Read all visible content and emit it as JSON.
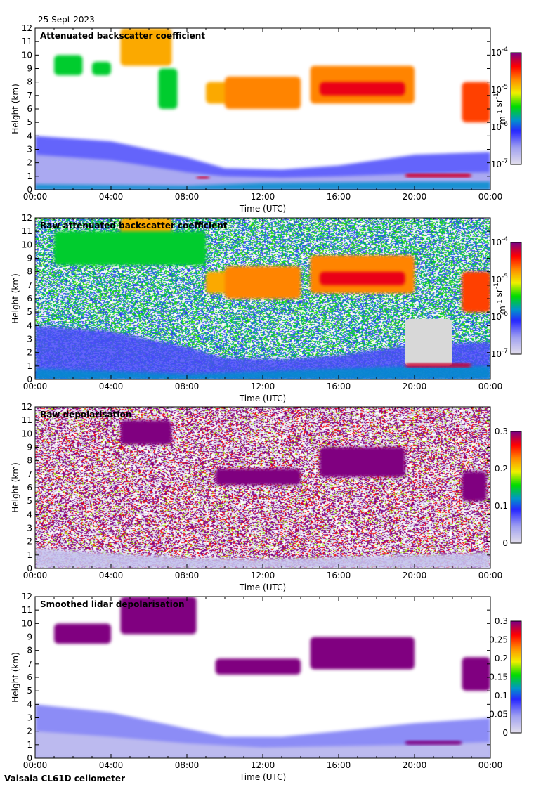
{
  "header": {
    "date": "25 Sept 2023"
  },
  "footer": {
    "instrument": "Vaisala CL61D ceilometer"
  },
  "chart_data": [
    {
      "type": "heatmap",
      "title": "Attenuated backscatter coefficient",
      "xlabel": "Time (UTC)",
      "ylabel": "Height (km)",
      "xlim_hours": [
        0,
        24
      ],
      "ylim": [
        0,
        12
      ],
      "xticks": [
        "00:00",
        "04:00",
        "08:00",
        "12:00",
        "16:00",
        "20:00",
        "00:00"
      ],
      "yticks": [
        "0",
        "1",
        "2",
        "3",
        "4",
        "5",
        "6",
        "7",
        "8",
        "9",
        "10",
        "11",
        "12"
      ],
      "background": "clear",
      "colorbar": {
        "scale": "log",
        "range": [
          1e-07,
          0.0001
        ],
        "label": "m-1 sr-1",
        "ticks": [
          {
            "base": "10",
            "exp": "-7"
          },
          {
            "base": "10",
            "exp": "-6"
          },
          {
            "base": "10",
            "exp": "-5"
          },
          {
            "base": "10",
            "exp": "-4"
          }
        ]
      },
      "features": [
        {
          "name": "boundary-layer-aerosol",
          "t": [
            0,
            24
          ],
          "top": [
            [
              0,
              4
            ],
            [
              4,
              3.6
            ],
            [
              8,
              2.4
            ],
            [
              10,
              1.6
            ],
            [
              13,
              1.5
            ],
            [
              16,
              1.8
            ],
            [
              20,
              2.6
            ],
            [
              24,
              2.8
            ]
          ],
          "value": 6e-07
        },
        {
          "name": "residual-layer",
          "t": [
            0,
            24
          ],
          "top": [
            [
              0,
              2.6
            ],
            [
              4,
              2.2
            ],
            [
              8,
              1.3
            ],
            [
              10,
              1.0
            ],
            [
              13,
              0.9
            ],
            [
              16,
              1.0
            ],
            [
              20,
              1.2
            ],
            [
              24,
              1.3
            ]
          ],
          "value": 2e-07
        },
        {
          "name": "surface-layer",
          "t": [
            0,
            24
          ],
          "top": [
            [
              0,
              0.4
            ],
            [
              8,
              0.3
            ],
            [
              12,
              0.5
            ],
            [
              20,
              0.6
            ],
            [
              24,
              0.6
            ]
          ],
          "value": 1.5e-06
        },
        {
          "name": "cirrus-early",
          "t": [
            1,
            2.5
          ],
          "h": [
            8.5,
            10
          ],
          "value": 3e-06
        },
        {
          "name": "cirrus-early-2",
          "t": [
            3,
            4
          ],
          "h": [
            8.5,
            9.5
          ],
          "value": 3e-06
        },
        {
          "name": "cirrus-high",
          "t": [
            4.5,
            7.2
          ],
          "h": [
            9.2,
            12
          ],
          "value": 1.5e-05
        },
        {
          "name": "fallstreak",
          "t": [
            6.5,
            7.5
          ],
          "h": [
            6,
            9
          ],
          "value": 3e-06
        },
        {
          "name": "cloud-mid-1",
          "t": [
            9,
            10.5
          ],
          "h": [
            6.4,
            8
          ],
          "value": 1.5e-05
        },
        {
          "name": "cloud-mid-2",
          "t": [
            10,
            14
          ],
          "h": [
            6,
            8.4
          ],
          "value": 2e-05
        },
        {
          "name": "cloud-mid-3",
          "t": [
            14.5,
            20
          ],
          "h": [
            6.4,
            9.2
          ],
          "value": 2e-05
        },
        {
          "name": "cloud-mid-core",
          "t": [
            15,
            19.5
          ],
          "h": [
            7,
            8
          ],
          "value": 5e-05
        },
        {
          "name": "cloud-late",
          "t": [
            22.5,
            24
          ],
          "h": [
            5,
            8
          ],
          "value": 3e-05
        },
        {
          "name": "low-cloud-evening",
          "t": [
            19.5,
            23
          ],
          "h": [
            0.9,
            1.2
          ],
          "value": 6e-05
        },
        {
          "name": "low-cloud-morning",
          "t": [
            8.5,
            9.2
          ],
          "h": [
            0.8,
            1.0
          ],
          "value": 6e-05
        }
      ]
    },
    {
      "type": "heatmap",
      "title": "Raw attenuated backscatter coefficient",
      "xlabel": "Time (UTC)",
      "ylabel": "Height (km)",
      "xlim_hours": [
        0,
        24
      ],
      "ylim": [
        0,
        12
      ],
      "xticks": [
        "00:00",
        "04:00",
        "08:00",
        "12:00",
        "16:00",
        "20:00",
        "00:00"
      ],
      "yticks": [
        "0",
        "1",
        "2",
        "3",
        "4",
        "5",
        "6",
        "7",
        "8",
        "9",
        "10",
        "11",
        "12"
      ],
      "background": "noise",
      "colorbar": {
        "scale": "log",
        "range": [
          1e-07,
          0.0001
        ],
        "label": "m-1 sr-1",
        "ticks": [
          {
            "base": "10",
            "exp": "-7"
          },
          {
            "base": "10",
            "exp": "-6"
          },
          {
            "base": "10",
            "exp": "-5"
          },
          {
            "base": "10",
            "exp": "-4"
          }
        ]
      },
      "features": [
        {
          "name": "boundary-layer-aerosol",
          "t": [
            0,
            24
          ],
          "top": [
            [
              0,
              4
            ],
            [
              4,
              3.6
            ],
            [
              8,
              2.4
            ],
            [
              10,
              1.6
            ],
            [
              13,
              1.5
            ],
            [
              16,
              1.8
            ],
            [
              20,
              2.6
            ],
            [
              24,
              2.8
            ]
          ],
          "value": 6e-07
        },
        {
          "name": "surface-layer",
          "t": [
            0,
            24
          ],
          "top": [
            [
              0,
              0.8
            ],
            [
              8,
              0.4
            ],
            [
              12,
              0.6
            ],
            [
              20,
              1.0
            ],
            [
              24,
              1.0
            ]
          ],
          "value": 1.5e-06
        },
        {
          "name": "cirrus-high",
          "t": [
            4.5,
            7.2
          ],
          "h": [
            9.2,
            12
          ],
          "value": 1.5e-05
        },
        {
          "name": "cirrus-wide",
          "t": [
            1,
            9
          ],
          "h": [
            8.5,
            11
          ],
          "value": 3e-06
        },
        {
          "name": "cloud-mid-1",
          "t": [
            9,
            10.5
          ],
          "h": [
            6.4,
            8
          ],
          "value": 1.5e-05
        },
        {
          "name": "cloud-mid-2",
          "t": [
            10,
            14
          ],
          "h": [
            6,
            8.4
          ],
          "value": 2e-05
        },
        {
          "name": "cloud-mid-3",
          "t": [
            14.5,
            20
          ],
          "h": [
            6.4,
            9.2
          ],
          "value": 2e-05
        },
        {
          "name": "cloud-mid-core",
          "t": [
            15,
            19.5
          ],
          "h": [
            7,
            8
          ],
          "value": 5e-05
        },
        {
          "name": "cloud-late",
          "t": [
            22.5,
            24
          ],
          "h": [
            5,
            8
          ],
          "value": 3e-05
        },
        {
          "name": "missing-data",
          "t": [
            19.5,
            22
          ],
          "h": [
            1,
            4.5
          ],
          "value": null
        },
        {
          "name": "low-cloud-evening",
          "t": [
            19.5,
            23
          ],
          "h": [
            0.9,
            1.2
          ],
          "value": 6e-05
        }
      ]
    },
    {
      "type": "heatmap",
      "title": "Raw depolarisation",
      "xlabel": "Time (UTC)",
      "ylabel": "Height (km)",
      "xlim_hours": [
        0,
        24
      ],
      "ylim": [
        0,
        12
      ],
      "xticks": [
        "00:00",
        "04:00",
        "08:00",
        "12:00",
        "16:00",
        "20:00",
        "00:00"
      ],
      "yticks": [
        "0",
        "1",
        "2",
        "3",
        "4",
        "5",
        "6",
        "7",
        "8",
        "9",
        "10",
        "11",
        "12"
      ],
      "background": "noise",
      "colorbar": {
        "scale": "linear",
        "range": [
          0,
          0.3
        ],
        "label": "",
        "ticks": [
          {
            "base": "0"
          },
          {
            "base": "0.1"
          },
          {
            "base": "0.2"
          },
          {
            "base": "0.3"
          }
        ]
      },
      "features": [
        {
          "name": "boundary-layer",
          "t": [
            0,
            24
          ],
          "top": [
            [
              0,
              1.5
            ],
            [
              8,
              0.8
            ],
            [
              12,
              0.7
            ],
            [
              20,
              1.0
            ],
            [
              24,
              1.2
            ]
          ],
          "value": 0.02
        },
        {
          "name": "cirrus-high",
          "t": [
            4.5,
            7.2
          ],
          "h": [
            9.2,
            11
          ],
          "value": 0.3
        },
        {
          "name": "cloud-mid-2",
          "t": [
            9.5,
            14
          ],
          "h": [
            6.2,
            7.4
          ],
          "value": 0.3
        },
        {
          "name": "cloud-mid-3",
          "t": [
            15,
            19.5
          ],
          "h": [
            6.8,
            9
          ],
          "value": 0.3
        },
        {
          "name": "cloud-late",
          "t": [
            22.5,
            23.8
          ],
          "h": [
            5,
            7.2
          ],
          "value": 0.3
        }
      ]
    },
    {
      "type": "heatmap",
      "title": "Smoothed lidar depolarisation",
      "xlabel": "Time (UTC)",
      "ylabel": "Height (km)",
      "xlim_hours": [
        0,
        24
      ],
      "ylim": [
        0,
        12
      ],
      "xticks": [
        "00:00",
        "04:00",
        "08:00",
        "12:00",
        "16:00",
        "20:00",
        "00:00"
      ],
      "yticks": [
        "0",
        "1",
        "2",
        "3",
        "4",
        "5",
        "6",
        "7",
        "8",
        "9",
        "10",
        "11",
        "12"
      ],
      "background": "clear",
      "colorbar": {
        "scale": "linear",
        "range": [
          0,
          0.3
        ],
        "label": "",
        "ticks": [
          {
            "base": "0"
          },
          {
            "base": "0.05"
          },
          {
            "base": "0.1"
          },
          {
            "base": "0.15"
          },
          {
            "base": "0.2"
          },
          {
            "base": "0.25"
          },
          {
            "base": "0.3"
          }
        ]
      },
      "features": [
        {
          "name": "aerosol-speckle",
          "t": [
            0,
            24
          ],
          "top": [
            [
              0,
              4
            ],
            [
              4,
              3.4
            ],
            [
              8,
              2.2
            ],
            [
              10,
              1.6
            ],
            [
              13,
              1.6
            ],
            [
              16,
              2
            ],
            [
              20,
              2.6
            ],
            [
              24,
              3
            ]
          ],
          "value": 0.06
        },
        {
          "name": "boundary-layer",
          "t": [
            0,
            24
          ],
          "top": [
            [
              0,
              2
            ],
            [
              4,
              1.6
            ],
            [
              8,
              1.1
            ],
            [
              12,
              0.8
            ],
            [
              20,
              1.0
            ],
            [
              24,
              1.2
            ]
          ],
          "value": 0.02
        },
        {
          "name": "cirrus-early",
          "t": [
            1,
            4
          ],
          "h": [
            8.5,
            10
          ],
          "value": 0.3
        },
        {
          "name": "cirrus-high",
          "t": [
            4.5,
            8.5
          ],
          "h": [
            9.2,
            12
          ],
          "value": 0.3
        },
        {
          "name": "cloud-mid-1",
          "t": [
            9.5,
            14
          ],
          "h": [
            6.2,
            7.4
          ],
          "value": 0.3
        },
        {
          "name": "cloud-mid-3",
          "t": [
            14.5,
            20
          ],
          "h": [
            6.6,
            9
          ],
          "value": 0.3
        },
        {
          "name": "cloud-late",
          "t": [
            22.5,
            24
          ],
          "h": [
            5,
            7.5
          ],
          "value": 0.3
        },
        {
          "name": "low-cloud-evening",
          "t": [
            19.5,
            22.5
          ],
          "h": [
            1,
            1.3
          ],
          "value": 0.3
        }
      ]
    }
  ]
}
